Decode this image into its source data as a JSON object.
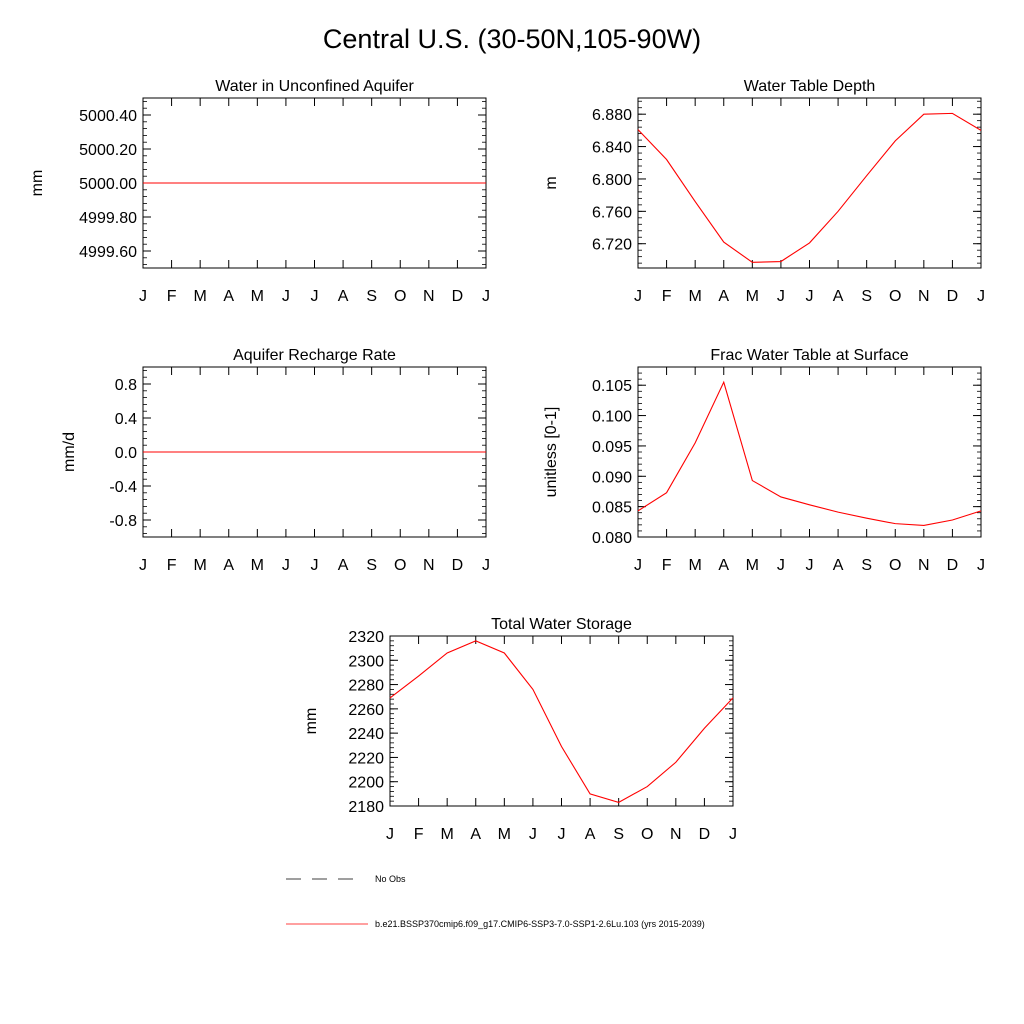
{
  "page": {
    "title": "Central U.S. (30-50N,105-90W)"
  },
  "colors": {
    "model_line": "#ff0000",
    "obs_line": "#000000",
    "axis": "#000000"
  },
  "months": [
    "J",
    "F",
    "M",
    "A",
    "M",
    "J",
    "J",
    "A",
    "S",
    "O",
    "N",
    "D",
    "J"
  ],
  "chart_data": [
    {
      "id": "aquifer",
      "type": "line",
      "title": "Water in Unconfined Aquifer",
      "ylabel": "mm",
      "xlabel": "",
      "ylim": [
        4999.5,
        5000.5
      ],
      "yticks": [
        4999.6,
        4999.8,
        5000.0,
        5000.2,
        5000.4
      ],
      "ytick_labels": [
        "4999.60",
        "4999.80",
        "5000.00",
        "5000.20",
        "5000.40"
      ],
      "categories": [
        "J",
        "F",
        "M",
        "A",
        "M",
        "J",
        "J",
        "A",
        "S",
        "O",
        "N",
        "D",
        "J"
      ],
      "series": [
        {
          "name": "b.e21.BSSP370cmip6.f09_g17.CMIP6-SSP3-7.0-SSP1-2.6Lu.103 (yrs 2015-2039)",
          "values": [
            5000,
            5000,
            5000,
            5000,
            5000,
            5000,
            5000,
            5000,
            5000,
            5000,
            5000,
            5000,
            5000
          ]
        }
      ]
    },
    {
      "id": "wtd",
      "type": "line",
      "title": "Water Table Depth",
      "ylabel": "m",
      "xlabel": "",
      "ylim": [
        6.69,
        6.9
      ],
      "yticks": [
        6.72,
        6.76,
        6.8,
        6.84,
        6.88
      ],
      "ytick_labels": [
        "6.720",
        "6.760",
        "6.800",
        "6.840",
        "6.880"
      ],
      "categories": [
        "J",
        "F",
        "M",
        "A",
        "M",
        "J",
        "J",
        "A",
        "S",
        "O",
        "N",
        "D",
        "J"
      ],
      "series": [
        {
          "name": "b.e21.BSSP370cmip6.f09_g17.CMIP6-SSP3-7.0-SSP1-2.6Lu.103 (yrs 2015-2039)",
          "values": [
            6.861,
            6.824,
            6.772,
            6.722,
            6.697,
            6.698,
            6.721,
            6.76,
            6.804,
            6.847,
            6.88,
            6.881,
            6.86
          ]
        }
      ]
    },
    {
      "id": "recharge",
      "type": "line",
      "title": "Aquifer Recharge Rate",
      "ylabel": "mm/d",
      "xlabel": "",
      "ylim": [
        -1.0,
        1.0
      ],
      "yticks": [
        -0.8,
        -0.4,
        0.0,
        0.4,
        0.8
      ],
      "ytick_labels": [
        "-0.8",
        "-0.4",
        "0.0",
        "0.4",
        "0.8"
      ],
      "categories": [
        "J",
        "F",
        "M",
        "A",
        "M",
        "J",
        "J",
        "A",
        "S",
        "O",
        "N",
        "D",
        "J"
      ],
      "series": [
        {
          "name": "b.e21.BSSP370cmip6.f09_g17.CMIP6-SSP3-7.0-SSP1-2.6Lu.103 (yrs 2015-2039)",
          "values": [
            0,
            0,
            0,
            0,
            0,
            0,
            0,
            0,
            0,
            0,
            0,
            0,
            0
          ]
        }
      ]
    },
    {
      "id": "fracwt",
      "type": "line",
      "title": "Frac Water Table at Surface",
      "ylabel": "unitless [0-1]",
      "xlabel": "",
      "ylim": [
        0.08,
        0.108
      ],
      "yticks": [
        0.08,
        0.085,
        0.09,
        0.095,
        0.1,
        0.105
      ],
      "ytick_labels": [
        "0.080",
        "0.085",
        "0.090",
        "0.095",
        "0.100",
        "0.105"
      ],
      "categories": [
        "J",
        "F",
        "M",
        "A",
        "M",
        "J",
        "J",
        "A",
        "S",
        "O",
        "N",
        "D",
        "J"
      ],
      "series": [
        {
          "name": "b.e21.BSSP370cmip6.f09_g17.CMIP6-SSP3-7.0-SSP1-2.6Lu.103 (yrs 2015-2039)",
          "values": [
            0.0843,
            0.0873,
            0.0955,
            0.1055,
            0.0893,
            0.0866,
            0.0853,
            0.0841,
            0.0831,
            0.0822,
            0.0819,
            0.0828,
            0.0843
          ]
        }
      ]
    },
    {
      "id": "tws",
      "type": "line",
      "title": "Total Water Storage",
      "ylabel": "mm",
      "xlabel": "",
      "ylim": [
        2180,
        2320
      ],
      "yticks": [
        2180,
        2200,
        2220,
        2240,
        2260,
        2280,
        2300,
        2320
      ],
      "ytick_labels": [
        "2180",
        "2200",
        "2220",
        "2240",
        "2260",
        "2280",
        "2300",
        "2320"
      ],
      "categories": [
        "J",
        "F",
        "M",
        "A",
        "M",
        "J",
        "J",
        "A",
        "S",
        "O",
        "N",
        "D",
        "J"
      ],
      "series": [
        {
          "name": "b.e21.BSSP370cmip6.f09_g17.CMIP6-SSP3-7.0-SSP1-2.6Lu.103 (yrs 2015-2039)",
          "values": [
            2269,
            2287,
            2306,
            2316,
            2306,
            2276,
            2229,
            2190,
            2183,
            2196,
            2216,
            2244,
            2269
          ]
        }
      ]
    }
  ],
  "legend": {
    "placement": "bottom-left",
    "entries": [
      {
        "style": "dashed",
        "label": "No Obs"
      },
      {
        "style": "solid",
        "label": "b.e21.BSSP370cmip6.f09_g17.CMIP6-SSP3-7.0-SSP1-2.6Lu.103 (yrs 2015-2039)"
      }
    ]
  }
}
